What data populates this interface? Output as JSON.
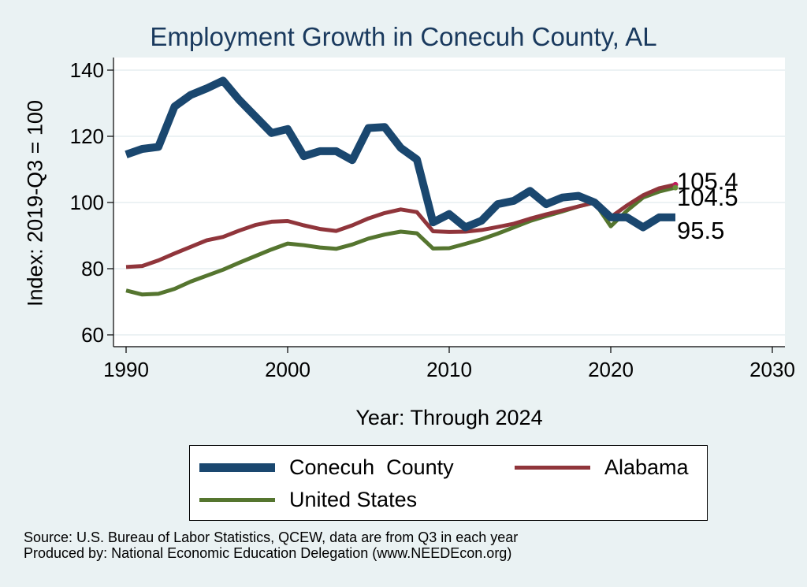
{
  "chart_data": {
    "type": "line",
    "title": "Employment Growth in Conecuh County, AL",
    "xlabel": "Year: Through 2024",
    "ylabel": "Index: 2019-Q3 = 100",
    "xlim": [
      1990,
      2030
    ],
    "ylim": [
      60,
      140
    ],
    "xticks": [
      "1990",
      "2000",
      "2010",
      "2020",
      "2030"
    ],
    "yticks": [
      "60",
      "80",
      "100",
      "120",
      "140"
    ],
    "grid": true,
    "legend_position": "bottom",
    "x": [
      1990,
      1991,
      1992,
      1993,
      1994,
      1995,
      1996,
      1997,
      1998,
      1999,
      2000,
      2001,
      2002,
      2003,
      2004,
      2005,
      2006,
      2007,
      2008,
      2009,
      2010,
      2011,
      2012,
      2013,
      2014,
      2015,
      2016,
      2017,
      2018,
      2019,
      2020,
      2021,
      2022,
      2023,
      2024
    ],
    "series": [
      {
        "name": "Conecuh  County",
        "color": "#1a476f",
        "values": [
          114.5,
          116.2,
          116.8,
          129,
          132.5,
          134.5,
          136.8,
          131,
          126,
          121,
          122.2,
          114,
          115.5,
          115.5,
          112.8,
          122.5,
          122.8,
          116.5,
          113,
          94,
          96.5,
          92.5,
          94.5,
          99.5,
          100.5,
          103.5,
          99.5,
          101.5,
          102,
          100,
          95.5,
          95.5,
          92.5,
          95.5,
          95.5
        ],
        "end_label": "95.5"
      },
      {
        "name": "Alabama",
        "color": "#90353b",
        "values": [
          80.5,
          80.8,
          82.5,
          84.6,
          86.6,
          88.6,
          89.6,
          91.5,
          93.2,
          94.2,
          94.4,
          93.1,
          92,
          91.4,
          93.1,
          95.2,
          96.8,
          97.9,
          97.1,
          91.3,
          91.1,
          91.2,
          91.7,
          92.6,
          93.6,
          95.1,
          96.4,
          97.6,
          98.8,
          100,
          95.6,
          99.1,
          102.2,
          104.3,
          105.4
        ],
        "end_label": "105.4"
      },
      {
        "name": "United States",
        "color": "#55752f",
        "values": [
          73.4,
          72.2,
          72.4,
          73.9,
          76.1,
          77.9,
          79.7,
          81.8,
          83.8,
          85.8,
          87.6,
          87.1,
          86.4,
          86,
          87.3,
          89.1,
          90.3,
          91.2,
          90.7,
          86.1,
          86.2,
          87.5,
          88.9,
          90.6,
          92.5,
          94.4,
          95.9,
          97.3,
          98.8,
          100,
          92.8,
          97.5,
          101.5,
          103.3,
          104.5
        ],
        "end_label": "104.5"
      }
    ]
  },
  "source_line1": "Source: U.S. Bureau of Labor Statistics, QCEW, data are from Q3 in each year",
  "source_line2": "Produced by: National Economic Education Delegation (www.NEEDEcon.org)"
}
